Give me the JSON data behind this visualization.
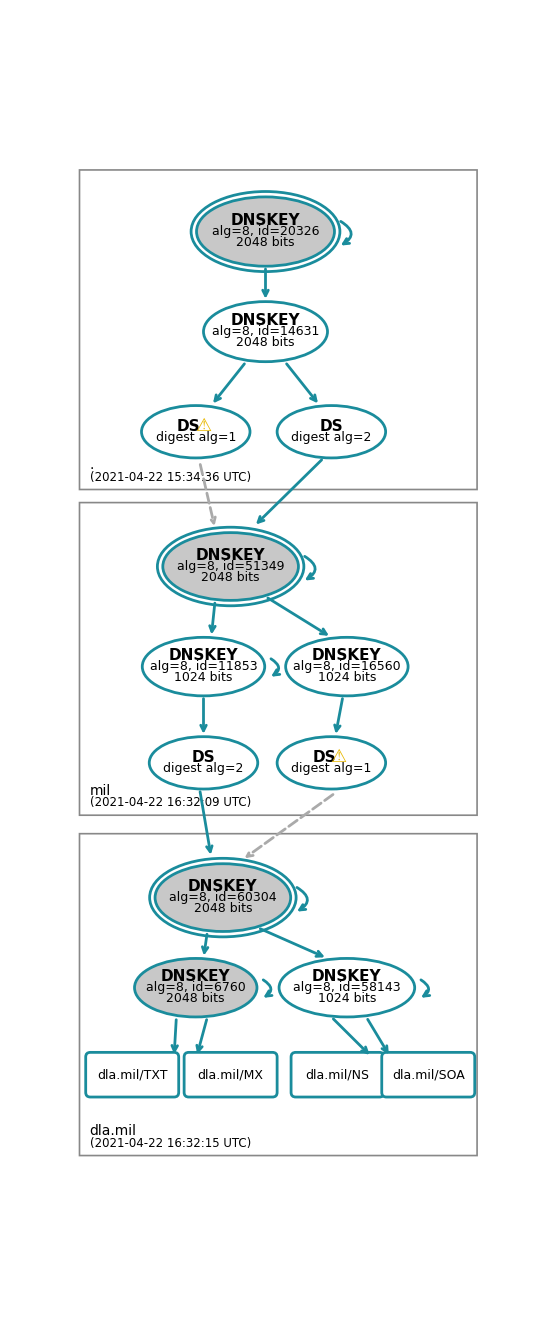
{
  "teal": "#1a8c9c",
  "gray_fill": "#c8c8c8",
  "white_fill": "#ffffff",
  "text_color": "#000000",
  "dashed_color": "#aaaaaa",
  "warn_color": "#e8b800",
  "bg": "#ffffff",
  "box_edge": "#888888",
  "section1": {
    "label": ".",
    "timestamp": "(2021-04-22 15:34:36 UTC)",
    "ksk": "DNSKEY\nalg=8, id=20326\n2048 bits",
    "zsk": "DNSKEY\nalg=8, id=14631\n2048 bits",
    "ds_warn": "DS\ndigest alg=1",
    "ds_ok": "DS\ndigest alg=2"
  },
  "section2": {
    "label": "mil",
    "timestamp": "(2021-04-22 16:32:09 UTC)",
    "ksk": "DNSKEY\nalg=8, id=51349\n2048 bits",
    "zsk1": "DNSKEY\nalg=8, id=11853\n1024 bits",
    "zsk2": "DNSKEY\nalg=8, id=16560\n1024 bits",
    "ds_ok": "DS\ndigest alg=2",
    "ds_warn": "DS\ndigest alg=1"
  },
  "section3": {
    "label": "dla.mil",
    "timestamp": "(2021-04-22 16:32:15 UTC)",
    "ksk": "DNSKEY\nalg=8, id=60304\n2048 bits",
    "zsk1": "DNSKEY\nalg=8, id=6760\n2048 bits",
    "zsk2": "DNSKEY\nalg=8, id=58143\n1024 bits",
    "records": [
      "dla.mil/TXT",
      "dla.mil/MX",
      "dla.mil/NS",
      "dla.mil/SOA"
    ]
  }
}
